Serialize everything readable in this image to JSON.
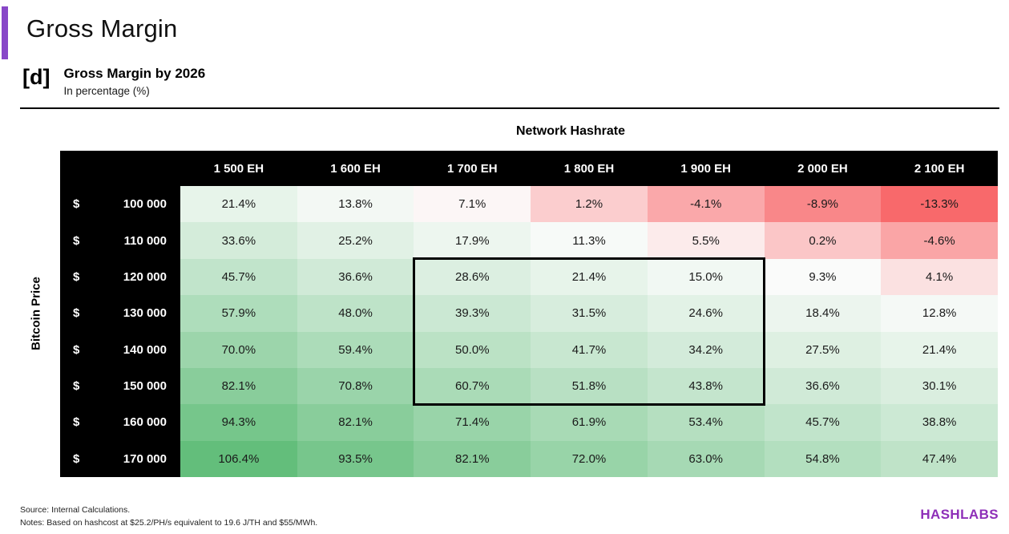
{
  "page_title": "Gross Margin",
  "accent": {
    "bar_color": "#8847c8",
    "logo_color": "#8e2fb8"
  },
  "figure": {
    "tag": "[d]",
    "title": "Gross Margin by 2026",
    "subtitle": "In percentage (%)"
  },
  "chart_data": {
    "type": "heatmap",
    "title": "Gross Margin by 2026",
    "x_axis_label": "Network Hashrate",
    "y_axis_label": "Bitcoin Price",
    "columns": [
      "1 500 EH",
      "1 600 EH",
      "1 700 EH",
      "1 800 EH",
      "1 900 EH",
      "2 000 EH",
      "2 100 EH"
    ],
    "row_currency_symbol": "$",
    "rows": [
      "100 000",
      "110 000",
      "120 000",
      "130 000",
      "140 000",
      "150 000",
      "160 000",
      "170 000"
    ],
    "values": [
      [
        21.4,
        13.8,
        7.1,
        1.2,
        -4.1,
        -8.9,
        -13.3
      ],
      [
        33.6,
        25.2,
        17.9,
        11.3,
        5.5,
        0.2,
        -4.6
      ],
      [
        45.7,
        36.6,
        28.6,
        21.4,
        15.0,
        9.3,
        4.1
      ],
      [
        57.9,
        48.0,
        39.3,
        31.5,
        24.6,
        18.4,
        12.8
      ],
      [
        70.0,
        59.4,
        50.0,
        41.7,
        34.2,
        27.5,
        21.4
      ],
      [
        82.1,
        70.8,
        60.7,
        51.8,
        43.8,
        36.6,
        30.1
      ],
      [
        94.3,
        82.1,
        71.4,
        61.9,
        53.4,
        45.7,
        38.8
      ],
      [
        106.4,
        93.5,
        82.1,
        72.0,
        63.0,
        54.8,
        47.4
      ]
    ],
    "value_suffix": "%",
    "value_decimals": 1,
    "colorscale": {
      "min_value": -13.3,
      "min_color": "#f8696b",
      "mid_value": 8.0,
      "mid_color": "#fcfcfc",
      "max_value": 106.4,
      "max_color": "#63be7b"
    },
    "highlight_box": {
      "row_start": 2,
      "row_end": 5,
      "col_start": 2,
      "col_end": 4
    }
  },
  "footer": {
    "source": "Source: Internal Calculations.",
    "notes": "Notes: Based on hashcost at $25.2/PH/s equivalent to 19.6 J/TH and $55/MWh.",
    "logo": "HASHLABS"
  }
}
